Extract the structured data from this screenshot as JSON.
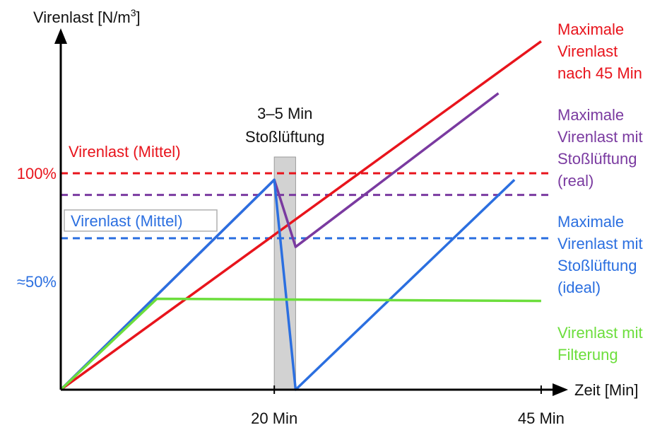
{
  "colors": {
    "red": "#e8141c",
    "purple": "#7a3aa0",
    "blue": "#2b6fe0",
    "green": "#6cde3c",
    "shade": "#d2d2d2"
  },
  "chart_data": {
    "type": "line",
    "ylabel": "Virenlast [N/m",
    "ylabel_sup": "3",
    "ylabel_end": "]",
    "xlabel": "Zeit [Min]",
    "x_ticks": [
      {
        "x": 20,
        "label": "20 Min"
      },
      {
        "x": 45,
        "label": "45 Min"
      }
    ],
    "y_ticks": [
      {
        "y": 100,
        "label": "100%",
        "color": "#e8141c"
      },
      {
        "y": 50,
        "label": "≈50%",
        "color": "#2b6fe0"
      }
    ],
    "xlim": [
      0,
      46
    ],
    "ylim": [
      0,
      168
    ],
    "shade": {
      "x0": 20,
      "x1": 22,
      "label_line1": "3–5 Min",
      "label_line2": "Stoßlüftung"
    },
    "series": [
      {
        "key": "red",
        "name": "Maximale Virenlast nach 45 Min",
        "legend_lines": [
          "Maximale",
          "Virenlast",
          "nach 45 Min"
        ],
        "color": "#e8141c",
        "x": [
          0,
          45
        ],
        "y": [
          0,
          161
        ]
      },
      {
        "key": "purple",
        "name": "Maximale Virenlast mit Stoßlüftung (real)",
        "legend_lines": [
          "Maximale",
          "Virenlast mit",
          "Stoßlüftung",
          "(real)"
        ],
        "color": "#7a3aa0",
        "x": [
          0,
          20,
          22,
          41
        ],
        "y": [
          0,
          97,
          66,
          137
        ]
      },
      {
        "key": "blue",
        "name": "Maximale Virenlast mit Stoßlüftung (ideal)",
        "legend_lines": [
          "Maximale",
          "Virenlast mit",
          "Stoßlüftung",
          "(ideal)"
        ],
        "color": "#2b6fe0",
        "x": [
          0,
          20,
          22,
          42.5
        ],
        "y": [
          0,
          97,
          0,
          97
        ]
      },
      {
        "key": "green",
        "name": "Virenlast mit Filterung",
        "legend_lines": [
          "Virenlast mit",
          "Filterung"
        ],
        "color": "#6cde3c",
        "x": [
          0,
          9,
          45
        ],
        "y": [
          0,
          42,
          41
        ]
      }
    ],
    "reference_lines": [
      {
        "key": "red",
        "y": 100,
        "color": "#e8141c",
        "label": "Virenlast (Mittel)"
      },
      {
        "key": "purple",
        "y": 90,
        "color": "#7a3aa0",
        "label": ""
      },
      {
        "key": "blue",
        "y": 70,
        "color": "#2b6fe0",
        "label": "Virenlast (Mittel)"
      }
    ]
  }
}
